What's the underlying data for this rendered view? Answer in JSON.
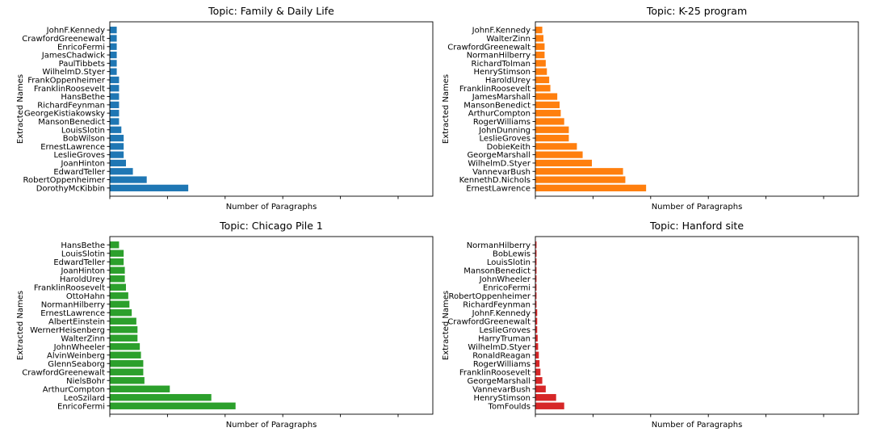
{
  "chart_data": [
    {
      "type": "bar",
      "orientation": "horizontal",
      "title": "Topic: Family & Daily Life",
      "xlabel": "Number of Paragraphs",
      "ylabel": "Extracted Names",
      "color": "#1f77b4",
      "xlim": [
        0,
        14
      ],
      "categories": [
        "JohnF.Kennedy",
        "CrawfordGreenewalt",
        "EnricoFermi",
        "JamesChadwick",
        "PaulTibbets",
        "WilhelmD.Styer",
        "FrankOppenheimer",
        "FranklinRoosevelt",
        "HansBethe",
        "RichardFeynman",
        "GeorgeKistiakowsky",
        "MansonBenedict",
        "LouisSlotin",
        "BobWilson",
        "ErnestLawrence",
        "LeslieGroves",
        "JoanHinton",
        "EdwardTeller",
        "RobertOppenheimer",
        "DorothyMcKibbin"
      ],
      "values": [
        0.3,
        0.3,
        0.3,
        0.3,
        0.3,
        0.3,
        0.4,
        0.4,
        0.4,
        0.4,
        0.4,
        0.4,
        0.5,
        0.6,
        0.6,
        0.6,
        0.7,
        1.0,
        1.6,
        3.4
      ]
    },
    {
      "type": "bar",
      "orientation": "horizontal",
      "title": "Topic: K-25 program",
      "xlabel": "Number of Paragraphs",
      "ylabel": "Extracted Names",
      "color": "#ff7f0e",
      "xlim": [
        0,
        14
      ],
      "categories": [
        "JohnF.Kennedy",
        "WalterZinn",
        "CrawfordGreenewalt",
        "NormanHilberry",
        "RichardTolman",
        "HenryStimson",
        "HaroldUrey",
        "FranklinRoosevelt",
        "JamesMarshall",
        "MansonBenedict",
        "ArthurCompton",
        "RogerWilliams",
        "JohnDunning",
        "LeslieGroves",
        "DobieKeith",
        "GeorgeMarshall",
        "WilhelmD.Styer",
        "VannevarBush",
        "KennethD.Nichols",
        "ErnestLawrence"
      ],
      "values": [
        0.3,
        0.35,
        0.4,
        0.4,
        0.45,
        0.5,
        0.6,
        0.65,
        0.95,
        1.05,
        1.1,
        1.25,
        1.45,
        1.45,
        1.8,
        2.05,
        2.45,
        3.8,
        3.9,
        4.8
      ]
    },
    {
      "type": "bar",
      "orientation": "horizontal",
      "title": "Topic: Chicago Pile 1",
      "xlabel": "Number of Paragraphs",
      "ylabel": "Extracted Names",
      "color": "#2ca02c",
      "xlim": [
        0,
        14
      ],
      "categories": [
        "HansBethe",
        "LouisSlotin",
        "EdwardTeller",
        "JoanHinton",
        "HaroldUrey",
        "FranklinRoosevelt",
        "OttoHahn",
        "NormanHilberry",
        "ErnestLawrence",
        "AlbertEinstein",
        "WernerHeisenberg",
        "WalterZinn",
        "JohnWheeler",
        "AlvinWeinberg",
        "GlennSeaborg",
        "CrawfordGreenewalt",
        "NielsBohr",
        "ArthurCompton",
        "LeoSzilard",
        "EnricoFermi"
      ],
      "values": [
        0.4,
        0.6,
        0.6,
        0.65,
        0.65,
        0.7,
        0.8,
        0.85,
        0.95,
        1.15,
        1.2,
        1.2,
        1.3,
        1.35,
        1.45,
        1.45,
        1.5,
        2.6,
        4.4,
        5.45
      ]
    },
    {
      "type": "bar",
      "orientation": "horizontal",
      "title": "Topic: Hanford site",
      "xlabel": "Number of Paragraphs",
      "ylabel": "Extracted Names",
      "color": "#d62728",
      "xlim": [
        0,
        14
      ],
      "categories": [
        "NormanHilberry",
        "BobLewis",
        "LouisSlotin",
        "MansonBenedict",
        "JohnWheeler",
        "EnricoFermi",
        "RobertOppenheimer",
        "RichardFeynman",
        "JohnF.Kennedy",
        "CrawfordGreenewalt",
        "LeslieGroves",
        "HarryTruman",
        "WilhelmD.Styer",
        "RonaldReagan",
        "RogerWilliams",
        "FranklinRoosevelt",
        "GeorgeMarshall",
        "VannevarBush",
        "HenryStimson",
        "TomFoulds"
      ],
      "values": [
        0.05,
        0.05,
        0.05,
        0.05,
        0.05,
        0.05,
        0.05,
        0.05,
        0.08,
        0.08,
        0.08,
        0.1,
        0.12,
        0.15,
        0.18,
        0.22,
        0.3,
        0.45,
        0.9,
        1.25
      ]
    }
  ]
}
